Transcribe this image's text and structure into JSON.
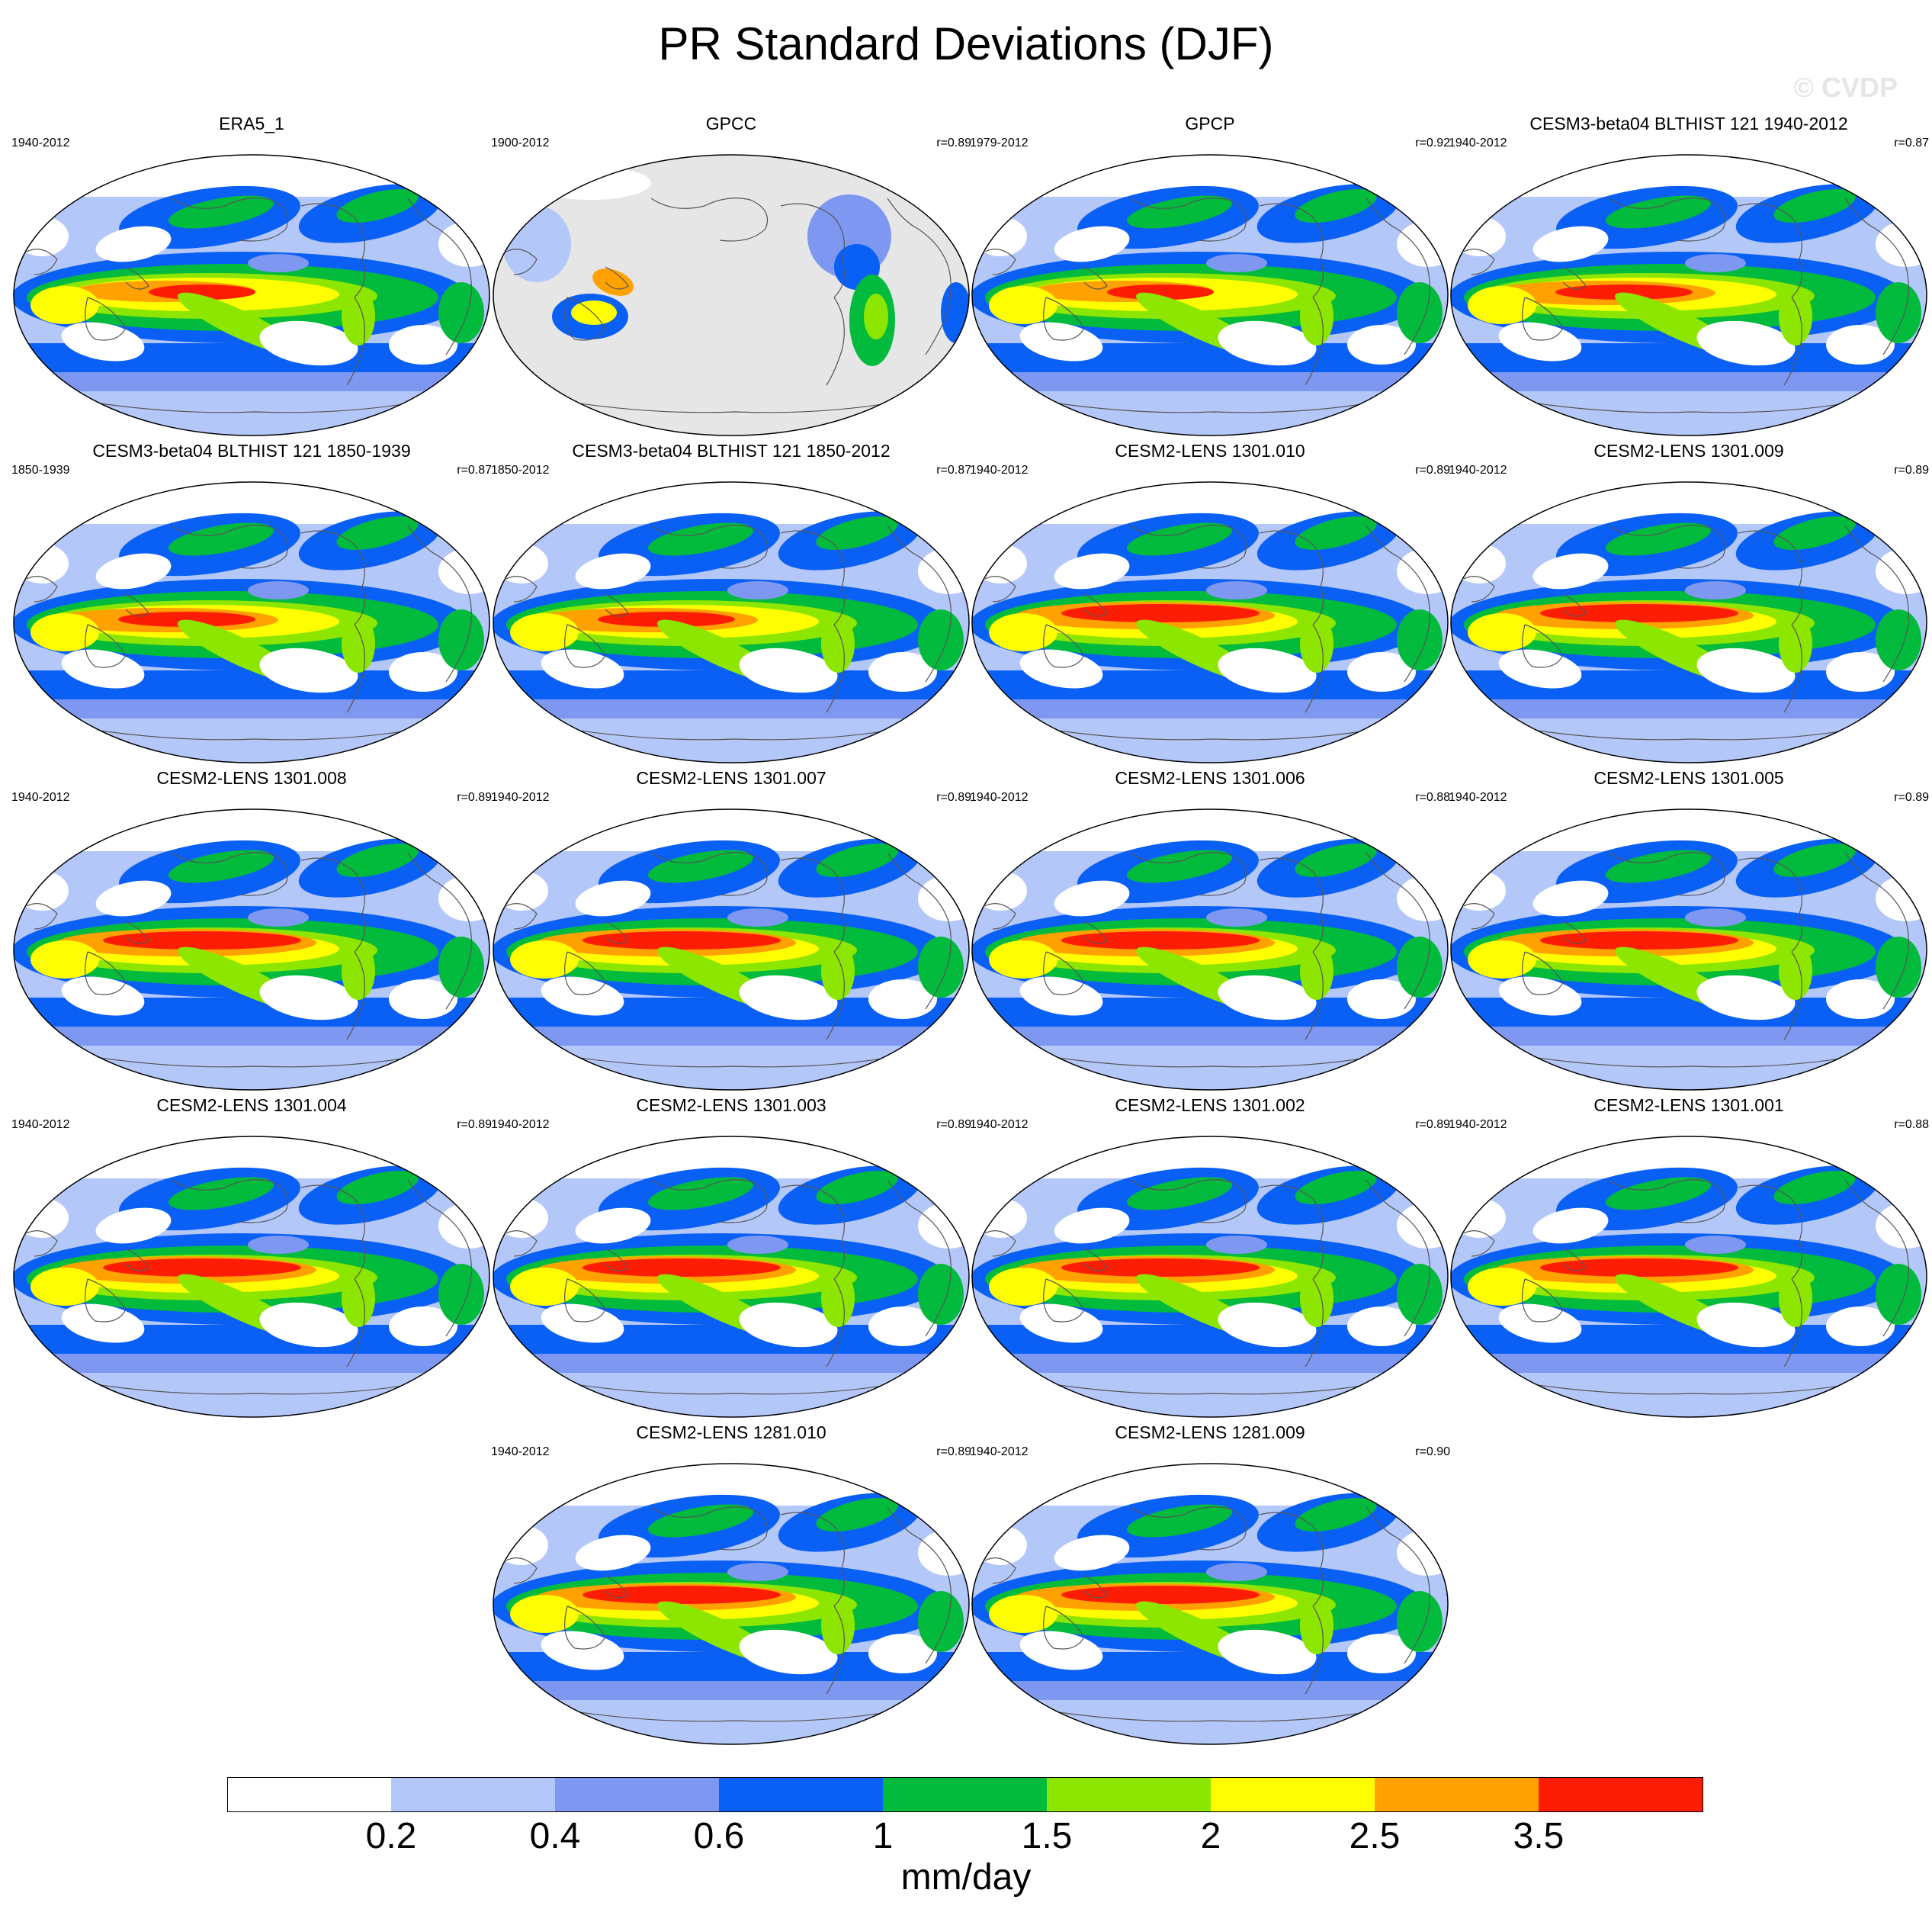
{
  "title": "PR Standard Deviations (DJF)",
  "watermark": "© CVDP",
  "panels": [
    {
      "title": "ERA5_1",
      "years": "1940-2012",
      "r": "",
      "style": "obs"
    },
    {
      "title": "GPCC",
      "years": "1900-2012",
      "r": "r=0.89",
      "style": "land"
    },
    {
      "title": "GPCP",
      "years": "1979-2012",
      "r": "r=0.92",
      "style": "obs"
    },
    {
      "title": "CESM3-beta04 BLTHIST 121 1940-2012",
      "years": "1940-2012",
      "r": "r=0.87",
      "style": "dcp"
    },
    {
      "title": "CESM3-beta04 BLTHIST 121 1850-1939",
      "years": "1850-1939",
      "r": "r=0.87",
      "style": "dcp"
    },
    {
      "title": "CESM3-beta04 BLTHIST 121 1850-2012",
      "years": "1850-2012",
      "r": "r=0.87",
      "style": "dcp"
    },
    {
      "title": "CESM2-LENS 1301.010",
      "years": "1940-2012",
      "r": "r=0.89",
      "style": "model"
    },
    {
      "title": "CESM2-LENS 1301.009",
      "years": "1940-2012",
      "r": "r=0.89",
      "style": "model"
    },
    {
      "title": "CESM2-LENS 1301.008",
      "years": "1940-2012",
      "r": "r=0.89",
      "style": "model"
    },
    {
      "title": "CESM2-LENS 1301.007",
      "years": "1940-2012",
      "r": "r=0.89",
      "style": "model"
    },
    {
      "title": "CESM2-LENS 1301.006",
      "years": "1940-2012",
      "r": "r=0.88",
      "style": "model"
    },
    {
      "title": "CESM2-LENS 1301.005",
      "years": "1940-2012",
      "r": "r=0.89",
      "style": "model"
    },
    {
      "title": "CESM2-LENS 1301.004",
      "years": "1940-2012",
      "r": "r=0.89",
      "style": "model"
    },
    {
      "title": "CESM2-LENS 1301.003",
      "years": "1940-2012",
      "r": "r=0.89",
      "style": "model"
    },
    {
      "title": "CESM2-LENS 1301.002",
      "years": "1940-2012",
      "r": "r=0.89",
      "style": "model"
    },
    {
      "title": "CESM2-LENS 1301.001",
      "years": "1940-2012",
      "r": "r=0.88",
      "style": "model"
    },
    {
      "title": "CESM2-LENS 1281.010",
      "years": "1940-2012",
      "r": "r=0.89",
      "style": "model"
    },
    {
      "title": "CESM2-LENS 1281.009",
      "years": "1940-2012",
      "r": "r=0.90",
      "style": "model"
    }
  ],
  "colorbar": {
    "colors": [
      "#ffffff",
      "#b4c7f9",
      "#7e98f2",
      "#0a60f5",
      "#02bb3c",
      "#8de600",
      "#fefd01",
      "#ffa100",
      "#fd1d05"
    ],
    "labels": [
      "0.2",
      "0.4",
      "0.6",
      "1",
      "1.5",
      "2",
      "2.5",
      "3.5"
    ],
    "units": "mm/day"
  },
  "land_mask_color": "#e6e6e6"
}
